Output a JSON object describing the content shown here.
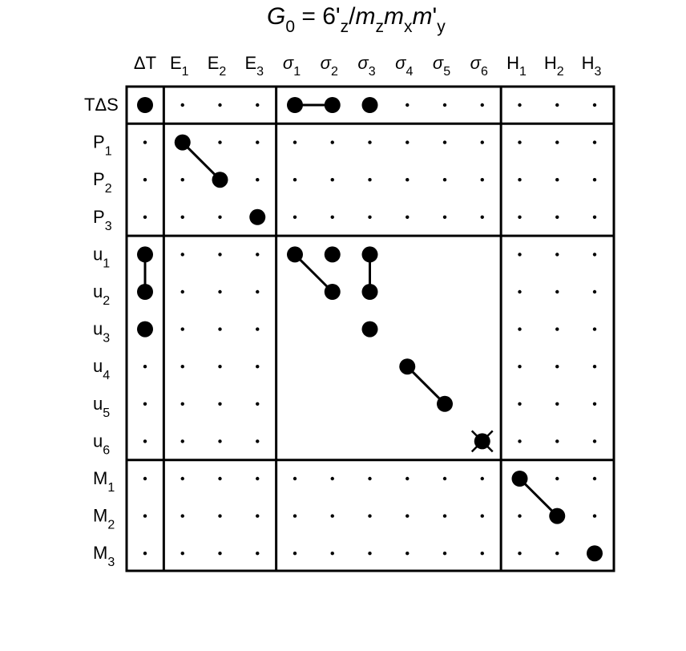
{
  "title": {
    "G": "G",
    "sub0": "0",
    "eq": " = 6'",
    "z1": "z",
    "slash": "/",
    "m1": "m",
    "z2": "z",
    "m2": "m",
    "x": "x",
    "m3": "m",
    "prime": "'",
    "y": "y"
  },
  "columns": [
    {
      "label": "ΔT",
      "sub": "",
      "italic": false
    },
    {
      "label": "E",
      "sub": "1",
      "italic": false
    },
    {
      "label": "E",
      "sub": "2",
      "italic": false
    },
    {
      "label": "E",
      "sub": "3",
      "italic": false
    },
    {
      "label": "σ",
      "sub": "1",
      "italic": true
    },
    {
      "label": "σ",
      "sub": "2",
      "italic": true
    },
    {
      "label": "σ",
      "sub": "3",
      "italic": true
    },
    {
      "label": "σ",
      "sub": "4",
      "italic": true
    },
    {
      "label": "σ",
      "sub": "5",
      "italic": true
    },
    {
      "label": "σ",
      "sub": "6",
      "italic": true
    },
    {
      "label": "H",
      "sub": "1",
      "italic": false
    },
    {
      "label": "H",
      "sub": "2",
      "italic": false
    },
    {
      "label": "H",
      "sub": "3",
      "italic": false
    }
  ],
  "rows": [
    {
      "label": "TΔS",
      "sub": ""
    },
    {
      "label": "P",
      "sub": "1"
    },
    {
      "label": "P",
      "sub": "2"
    },
    {
      "label": "P",
      "sub": "3"
    },
    {
      "label": "u",
      "sub": "1"
    },
    {
      "label": "u",
      "sub": "2"
    },
    {
      "label": "u",
      "sub": "3"
    },
    {
      "label": "u",
      "sub": "4"
    },
    {
      "label": "u",
      "sub": "5"
    },
    {
      "label": "u",
      "sub": "6"
    },
    {
      "label": "M",
      "sub": "1"
    },
    {
      "label": "M",
      "sub": "2"
    },
    {
      "label": "M",
      "sub": "3"
    }
  ],
  "column_groups": [
    [
      0
    ],
    [
      1,
      2,
      3
    ],
    [
      4,
      5,
      6,
      7,
      8,
      9
    ],
    [
      10,
      11,
      12
    ]
  ],
  "row_groups": [
    [
      0
    ],
    [
      1,
      2,
      3
    ],
    [
      4,
      5,
      6,
      7,
      8,
      9
    ],
    [
      10,
      11,
      12
    ]
  ],
  "nonzero": [
    [
      0,
      0
    ],
    [
      0,
      4
    ],
    [
      0,
      5
    ],
    [
      0,
      6
    ],
    [
      1,
      1
    ],
    [
      2,
      2
    ],
    [
      3,
      3
    ],
    [
      4,
      0
    ],
    [
      5,
      0
    ],
    [
      6,
      0
    ],
    [
      4,
      4
    ],
    [
      4,
      5
    ],
    [
      4,
      6
    ],
    [
      5,
      5
    ],
    [
      5,
      6
    ],
    [
      6,
      6
    ],
    [
      7,
      7
    ],
    [
      8,
      8
    ],
    [
      9,
      9
    ],
    [
      10,
      10
    ],
    [
      11,
      11
    ],
    [
      12,
      12
    ]
  ],
  "links": [
    [
      [
        0,
        4
      ],
      [
        0,
        5
      ]
    ],
    [
      [
        1,
        1
      ],
      [
        2,
        2
      ]
    ],
    [
      [
        4,
        0
      ],
      [
        5,
        0
      ]
    ],
    [
      [
        4,
        4
      ],
      [
        5,
        5
      ]
    ],
    [
      [
        4,
        6
      ],
      [
        5,
        6
      ]
    ],
    [
      [
        7,
        7
      ],
      [
        8,
        8
      ]
    ],
    [
      [
        10,
        10
      ],
      [
        11,
        11
      ]
    ]
  ],
  "crossed": [
    [
      9,
      9
    ]
  ],
  "empty_blocks": [
    [
      2,
      2
    ]
  ]
}
